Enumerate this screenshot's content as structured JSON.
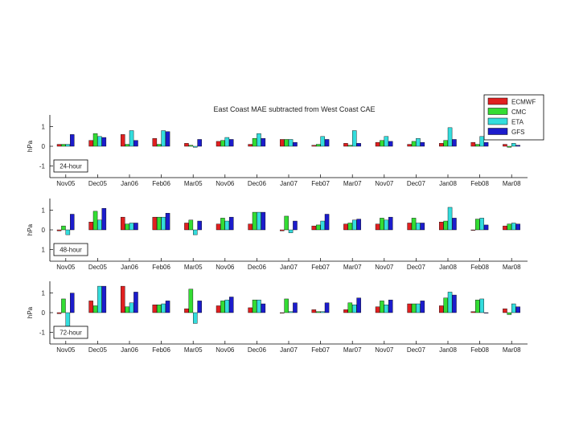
{
  "title": "East Coast MAE subtracted from West Coast CAE",
  "legend": {
    "placement": "top-right",
    "entries": [
      {
        "label": "ECMWF",
        "color": "#e02020"
      },
      {
        "label": "CMC",
        "color": "#33dd33"
      },
      {
        "label": "ETA",
        "color": "#33dddd"
      },
      {
        "label": "GFS",
        "color": "#1c1ccc"
      }
    ]
  },
  "chart_data": [
    {
      "type": "bar",
      "panel_label": "24-hour",
      "ylabel": "hPa",
      "yticks": [
        "1",
        "0",
        "-1"
      ],
      "ylim": [
        -1.6,
        1.6
      ],
      "grid": false,
      "categories": [
        "Nov05",
        "Dec05",
        "Jan06",
        "Feb06",
        "Mar05",
        "Nov06",
        "Dec06",
        "Jan07",
        "Feb07",
        "Mar07",
        "Nov07",
        "Dec07",
        "Jan08",
        "Feb08",
        "Mar08"
      ],
      "series": [
        {
          "name": "ECMWF",
          "values": [
            0.1,
            0.3,
            0.6,
            0.4,
            0.15,
            0.25,
            0.1,
            0.35,
            0.05,
            0.15,
            0.2,
            0.1,
            0.15,
            0.2,
            0.1
          ]
        },
        {
          "name": "CMC",
          "values": [
            0.1,
            0.65,
            0.1,
            0.1,
            0.05,
            0.3,
            0.4,
            0.35,
            0.1,
            0.05,
            0.3,
            0.25,
            0.3,
            0.1,
            -0.05
          ]
        },
        {
          "name": "ETA",
          "values": [
            0.1,
            0.5,
            0.8,
            0.8,
            -0.05,
            0.45,
            0.65,
            0.35,
            0.5,
            0.8,
            0.5,
            0.4,
            0.95,
            0.5,
            0.15
          ]
        },
        {
          "name": "GFS",
          "values": [
            0.6,
            0.45,
            0.3,
            0.75,
            0.35,
            0.35,
            0.4,
            0.2,
            0.35,
            0.15,
            0.25,
            0.2,
            0.35,
            0.2,
            0.05
          ]
        }
      ]
    },
    {
      "type": "bar",
      "panel_label": "48-hour",
      "ylabel": "hPa",
      "yticks": [
        "1",
        "0",
        "1"
      ],
      "ylim": [
        -1.6,
        1.6
      ],
      "grid": false,
      "categories": [
        "Nov05",
        "Dec05",
        "Jan06",
        "Feb06",
        "Mar05",
        "Nov06",
        "Dec06",
        "Jan07",
        "Feb07",
        "Mar07",
        "Nov07",
        "Dec07",
        "Jan08",
        "Feb08",
        "Mar08"
      ],
      "series": [
        {
          "name": "ECMWF",
          "values": [
            -0.05,
            0.4,
            0.65,
            0.65,
            0.35,
            0.3,
            0.3,
            -0.05,
            0.2,
            0.3,
            0.3,
            0.35,
            0.4,
            0.0,
            0.2
          ]
        },
        {
          "name": "CMC",
          "values": [
            0.2,
            0.95,
            0.3,
            0.65,
            0.5,
            0.6,
            0.9,
            0.7,
            0.25,
            0.35,
            0.6,
            0.6,
            0.45,
            0.55,
            0.3
          ]
        },
        {
          "name": "ETA",
          "values": [
            -0.25,
            0.5,
            0.35,
            0.65,
            -0.25,
            0.45,
            0.9,
            -0.15,
            0.45,
            0.5,
            0.5,
            0.35,
            1.15,
            0.6,
            0.35
          ]
        },
        {
          "name": "GFS",
          "values": [
            0.8,
            1.1,
            0.35,
            0.85,
            0.45,
            0.65,
            0.9,
            0.45,
            0.8,
            0.55,
            0.65,
            0.35,
            0.6,
            0.25,
            0.3
          ]
        }
      ]
    },
    {
      "type": "bar",
      "panel_label": "72-hour",
      "ylabel": "hPa",
      "yticks": [
        "1",
        "0",
        "-1"
      ],
      "ylim": [
        -1.6,
        1.6
      ],
      "grid": false,
      "categories": [
        "Nov05",
        "Dec05",
        "Jan06",
        "Feb06",
        "Mar05",
        "Nov06",
        "Dec06",
        "Jan07",
        "Feb07",
        "Mar07",
        "Nov07",
        "Dec07",
        "Jan08",
        "Feb08",
        "Mar08"
      ],
      "series": [
        {
          "name": "ECMWF",
          "values": [
            -0.05,
            0.6,
            1.35,
            0.4,
            0.2,
            0.35,
            0.25,
            0.0,
            0.15,
            0.15,
            0.3,
            0.45,
            0.35,
            0.05,
            0.2
          ]
        },
        {
          "name": "CMC",
          "values": [
            0.7,
            0.35,
            0.3,
            0.4,
            1.2,
            0.6,
            0.65,
            0.7,
            0.05,
            0.5,
            0.6,
            0.45,
            0.75,
            0.65,
            -0.1
          ]
        },
        {
          "name": "ETA",
          "values": [
            -0.7,
            1.35,
            0.5,
            0.45,
            -0.55,
            0.65,
            0.65,
            0.05,
            0.05,
            0.4,
            0.4,
            0.45,
            1.05,
            0.7,
            0.45
          ]
        },
        {
          "name": "GFS",
          "values": [
            1.0,
            1.35,
            1.05,
            0.6,
            0.6,
            0.8,
            0.45,
            0.5,
            0.5,
            0.75,
            0.65,
            0.6,
            0.9,
            0.0,
            0.3
          ]
        }
      ]
    }
  ]
}
